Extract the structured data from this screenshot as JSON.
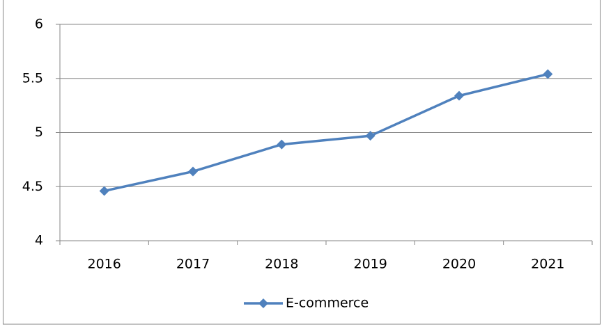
{
  "chart_data": {
    "type": "line",
    "categories": [
      "2016",
      "2017",
      "2018",
      "2019",
      "2020",
      "2021"
    ],
    "series": [
      {
        "name": "E-commerce",
        "color": "#4f81bd",
        "values": [
          4.46,
          4.64,
          4.89,
          4.97,
          5.34,
          5.54
        ]
      }
    ],
    "ylim": [
      4,
      6
    ],
    "yticks": [
      4,
      4.5,
      5,
      5.5,
      6
    ],
    "grid": true,
    "legend": "bottom"
  }
}
